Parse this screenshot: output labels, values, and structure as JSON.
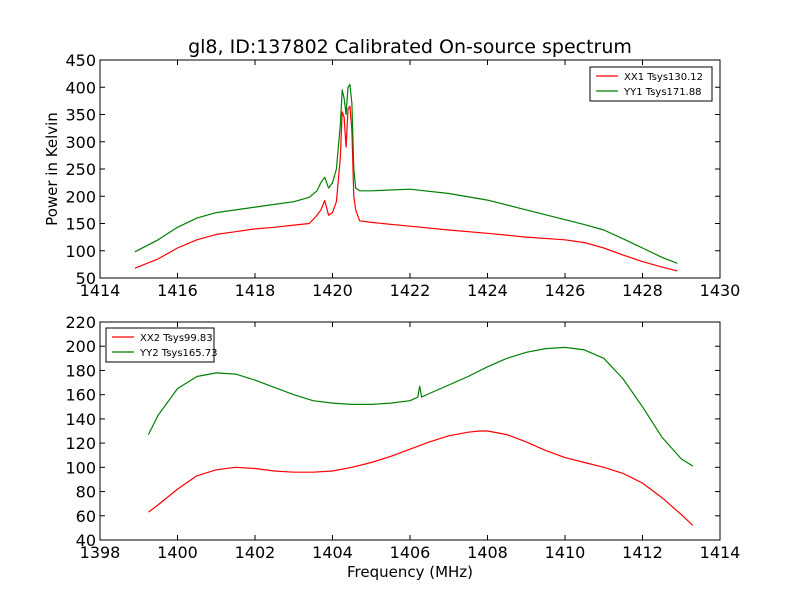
{
  "title": "gl8, ID:137802 Calibrated On-source spectrum",
  "chart_data": [
    {
      "type": "line",
      "xlabel": "",
      "ylabel": "Power in Kelvin",
      "xlim": [
        1414,
        1430
      ],
      "ylim": [
        50,
        450
      ],
      "xticks": [
        1414,
        1416,
        1418,
        1420,
        1422,
        1424,
        1426,
        1428,
        1430
      ],
      "yticks": [
        50,
        100,
        150,
        200,
        250,
        300,
        350,
        400,
        450
      ],
      "legend": "top-right",
      "series": [
        {
          "name": "XX1 Tsys130.12",
          "color": "#ff0000",
          "x": [
            1414.9,
            1415.5,
            1416.0,
            1416.5,
            1417.0,
            1417.5,
            1418.0,
            1418.5,
            1419.0,
            1419.4,
            1419.6,
            1419.7,
            1419.8,
            1419.9,
            1420.0,
            1420.1,
            1420.2,
            1420.25,
            1420.3,
            1420.35,
            1420.4,
            1420.45,
            1420.5,
            1420.55,
            1420.6,
            1420.7,
            1421.0,
            1422.0,
            1423.0,
            1424.0,
            1425.0,
            1426.0,
            1426.5,
            1427.0,
            1427.5,
            1428.0,
            1428.5,
            1428.9
          ],
          "values": [
            68,
            85,
            105,
            120,
            130,
            135,
            140,
            143,
            147,
            150,
            165,
            175,
            192,
            165,
            170,
            190,
            270,
            355,
            345,
            290,
            360,
            365,
            320,
            200,
            175,
            155,
            152,
            145,
            138,
            132,
            125,
            120,
            115,
            105,
            92,
            80,
            70,
            63
          ]
        },
        {
          "name": "YY1 Tsys171.88",
          "color": "#008000",
          "x": [
            1414.9,
            1415.5,
            1416.0,
            1416.5,
            1417.0,
            1417.5,
            1418.0,
            1418.5,
            1419.0,
            1419.4,
            1419.6,
            1419.7,
            1419.8,
            1419.9,
            1420.0,
            1420.1,
            1420.2,
            1420.25,
            1420.3,
            1420.35,
            1420.4,
            1420.45,
            1420.5,
            1420.55,
            1420.6,
            1420.7,
            1421.0,
            1422.0,
            1423.0,
            1424.0,
            1425.0,
            1426.0,
            1426.5,
            1427.0,
            1427.5,
            1428.0,
            1428.5,
            1428.9
          ],
          "values": [
            98,
            120,
            143,
            160,
            170,
            175,
            180,
            185,
            190,
            198,
            210,
            225,
            235,
            215,
            225,
            250,
            330,
            395,
            380,
            350,
            400,
            405,
            370,
            250,
            215,
            210,
            210,
            213,
            205,
            193,
            175,
            157,
            148,
            138,
            122,
            105,
            88,
            77
          ]
        }
      ]
    },
    {
      "type": "line",
      "xlabel": "Frequency (MHz)",
      "ylabel": "",
      "xlim": [
        1398,
        1414
      ],
      "ylim": [
        40,
        220
      ],
      "xticks": [
        1398,
        1400,
        1402,
        1404,
        1406,
        1408,
        1410,
        1412,
        1414
      ],
      "yticks": [
        40,
        60,
        80,
        100,
        120,
        140,
        160,
        180,
        200,
        220
      ],
      "legend": "top-left",
      "series": [
        {
          "name": "XX2 Tsys99.83",
          "color": "#ff0000",
          "x": [
            1399.25,
            1399.5,
            1400.0,
            1400.5,
            1401.0,
            1401.5,
            1402.0,
            1402.5,
            1403.0,
            1403.5,
            1404.0,
            1404.5,
            1405.0,
            1405.5,
            1406.0,
            1406.5,
            1407.0,
            1407.5,
            1407.8,
            1408.0,
            1408.5,
            1409.0,
            1409.5,
            1410.0,
            1410.5,
            1411.0,
            1411.5,
            1412.0,
            1412.5,
            1413.0,
            1413.3
          ],
          "values": [
            63,
            69,
            82,
            93,
            98,
            100,
            99,
            97,
            96,
            96,
            97,
            100,
            104,
            109,
            115,
            121,
            126,
            129,
            130,
            130,
            127,
            121,
            114,
            108,
            104,
            100,
            95,
            87,
            75,
            61,
            52
          ]
        },
        {
          "name": "YY2 Tsys165.73",
          "color": "#008000",
          "x": [
            1399.25,
            1399.5,
            1400.0,
            1400.5,
            1401.0,
            1401.5,
            1402.0,
            1402.5,
            1403.0,
            1403.5,
            1404.0,
            1404.5,
            1405.0,
            1405.5,
            1406.0,
            1406.2,
            1406.25,
            1406.3,
            1406.5,
            1407.0,
            1407.5,
            1408.0,
            1408.5,
            1409.0,
            1409.5,
            1410.0,
            1410.5,
            1411.0,
            1411.5,
            1412.0,
            1412.5,
            1413.0,
            1413.3
          ],
          "values": [
            127,
            143,
            165,
            175,
            178,
            177,
            172,
            166,
            160,
            155,
            153,
            152,
            152,
            153,
            155,
            158,
            167,
            158,
            161,
            168,
            175,
            183,
            190,
            195,
            198,
            199,
            197,
            190,
            173,
            150,
            125,
            107,
            101
          ]
        }
      ]
    }
  ]
}
